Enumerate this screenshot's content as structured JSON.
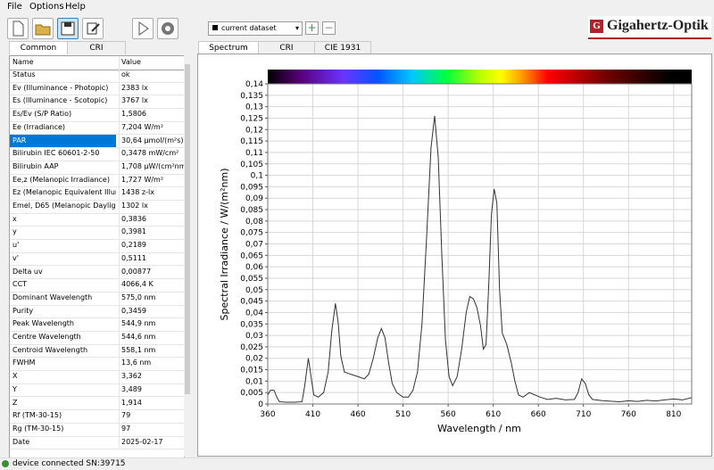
{
  "menu": [
    "File",
    "Options",
    "Help"
  ],
  "toolbar": {
    "dataset": "current dataset"
  },
  "logo": "Gigahertz-Optik",
  "left_tabs": [
    "Common",
    "CRI"
  ],
  "table": {
    "header": [
      "Name",
      "Value"
    ],
    "rows": [
      [
        "Status",
        "ok"
      ],
      [
        "Ev (Illuminance - Photopic)",
        "2383 lx"
      ],
      [
        "Es (Illuminance - Scotopic)",
        "3767 lx"
      ],
      [
        "Es/Ev (S/P Ratio)",
        "1,5806"
      ],
      [
        "Ee (Irradiance)",
        "7,204 W/m²"
      ],
      [
        "PAR",
        "30,64 µmol/(m²s)"
      ],
      [
        "Bilirubin IEC 60601-2-50",
        "0,3478 mW/cm²"
      ],
      [
        "Bilirubin AAP",
        "1,708 µW/(cm²nm)"
      ],
      [
        "Ee,z (Melanopic Irradiance)",
        "1,727 W/m²"
      ],
      [
        "Ez (Melanopic Equivalent Illumina...",
        "1438 z-lx"
      ],
      [
        "Emel, D65 (Melanopic Daylight Eq...",
        "1302 lx"
      ],
      [
        "x",
        "0,3836"
      ],
      [
        "y",
        "0,3981"
      ],
      [
        "u'",
        "0,2189"
      ],
      [
        "v'",
        "0,5111"
      ],
      [
        "Delta uv",
        "0,00877"
      ],
      [
        "CCT",
        "4066,4 K"
      ],
      [
        "Dominant Wavelength",
        "575,0 nm"
      ],
      [
        "Purity",
        "0,3459"
      ],
      [
        "Peak Wavelength",
        "544,9 nm"
      ],
      [
        "Centre Wavelength",
        "544,6 nm"
      ],
      [
        "Centroid Wavelength",
        "558,1 nm"
      ],
      [
        "FWHM",
        "13,6 nm"
      ],
      [
        "X",
        "3,362"
      ],
      [
        "Y",
        "3,489"
      ],
      [
        "Z",
        "1,914"
      ],
      [
        "Rf (TM-30-15)",
        "79"
      ],
      [
        "Rg (TM-30-15)",
        "97"
      ],
      [
        "Date",
        "2025-02-17"
      ]
    ]
  },
  "right_tabs": [
    "Spectrum",
    "CRI",
    "CIE 1931"
  ],
  "status": "device connected SN:39715",
  "chart_data": {
    "type": "line",
    "x_label": "Wavelength / nm",
    "y_label": "Spectral Irradiance / W/(m²nm)",
    "color": "#333333",
    "grid": true,
    "x": [
      360,
      363,
      367,
      370,
      373,
      380,
      390,
      398,
      401,
      405,
      408,
      411,
      416,
      422,
      427,
      431,
      435,
      438,
      441,
      445,
      452,
      460,
      467,
      472,
      477,
      482,
      486,
      490,
      494,
      498,
      503,
      510,
      516,
      521,
      526,
      531,
      536,
      541,
      545,
      549,
      553,
      557,
      561,
      565,
      570,
      575,
      580,
      584,
      588,
      592,
      596,
      599,
      602,
      605,
      608,
      611,
      614,
      617,
      620,
      625,
      630,
      634,
      638,
      643,
      650,
      656,
      662,
      670,
      680,
      690,
      700,
      704,
      708,
      712,
      716,
      720,
      730,
      740,
      750,
      760,
      770,
      780,
      790,
      800,
      810,
      820,
      830
    ],
    "values": [
      0.004,
      0.006,
      0.006,
      0.003,
      0.001,
      0.0008,
      0.0008,
      0.001,
      0.008,
      0.02,
      0.012,
      0.004,
      0.003,
      0.005,
      0.014,
      0.032,
      0.044,
      0.036,
      0.021,
      0.014,
      0.013,
      0.012,
      0.011,
      0.013,
      0.02,
      0.029,
      0.033,
      0.029,
      0.018,
      0.009,
      0.005,
      0.003,
      0.003,
      0.006,
      0.014,
      0.035,
      0.072,
      0.112,
      0.126,
      0.108,
      0.065,
      0.028,
      0.012,
      0.008,
      0.012,
      0.024,
      0.04,
      0.047,
      0.046,
      0.042,
      0.034,
      0.024,
      0.026,
      0.052,
      0.083,
      0.094,
      0.088,
      0.05,
      0.031,
      0.026,
      0.018,
      0.01,
      0.004,
      0.003,
      0.005,
      0.004,
      0.003,
      0.002,
      0.0025,
      0.0018,
      0.002,
      0.005,
      0.011,
      0.009,
      0.004,
      0.002,
      0.0015,
      0.0012,
      0.001,
      0.0014,
      0.0011,
      0.0016,
      0.0013,
      0.0018,
      0.0022,
      0.0018,
      0.0028
    ],
    "xlim": [
      360,
      830
    ],
    "xticks": [
      360,
      410,
      460,
      510,
      560,
      610,
      660,
      710,
      760,
      810
    ],
    "ylim": [
      0,
      0.14
    ],
    "yticks": [
      0,
      {
        "value": 0.005,
        "label": "0,005"
      },
      {
        "value": 0.01,
        "label": "0,01"
      },
      {
        "value": 0.015,
        "label": "0,015"
      },
      {
        "value": 0.02,
        "label": "0,02"
      },
      {
        "value": 0.025,
        "label": "0,025"
      },
      {
        "value": 0.03,
        "label": "0,03"
      },
      {
        "value": 0.035,
        "label": "0,035"
      },
      {
        "value": 0.04,
        "label": "0,04"
      },
      {
        "value": 0.045,
        "label": "0,045"
      },
      {
        "value": 0.05,
        "label": "0,05"
      },
      {
        "value": 0.055,
        "label": "0,055"
      },
      {
        "value": 0.06,
        "label": "0,06"
      },
      {
        "value": 0.065,
        "label": "0,065"
      },
      {
        "value": 0.07,
        "label": "0,07"
      },
      {
        "value": 0.075,
        "label": "0,075"
      },
      {
        "value": 0.08,
        "label": "0,08"
      },
      {
        "value": 0.085,
        "label": "0,085"
      },
      {
        "value": 0.09,
        "label": "0,09"
      },
      {
        "value": 0.095,
        "label": "0,095"
      },
      {
        "value": 0.1,
        "label": "0,1"
      },
      {
        "value": 0.105,
        "label": "0,105"
      },
      {
        "value": 0.11,
        "label": "0,11"
      },
      {
        "value": 0.115,
        "label": "0,115"
      },
      {
        "value": 0.12,
        "label": "0,12"
      },
      {
        "value": 0.125,
        "label": "0,125"
      },
      {
        "value": 0.13,
        "label": "0,13"
      },
      {
        "value": 0.135,
        "label": "0,135"
      },
      {
        "value": 0.14,
        "label": "0,14"
      }
    ]
  }
}
